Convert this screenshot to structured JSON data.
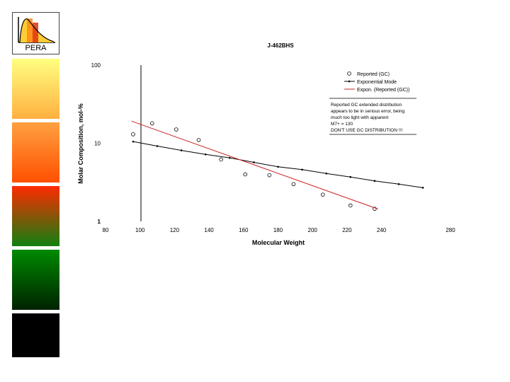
{
  "sidebar": {
    "logo_label": "PERA",
    "colors": [
      "#ffff80",
      "#ffa040",
      "#ff2a00",
      "#008a00",
      "#000000"
    ]
  },
  "chart_data": {
    "type": "scatter",
    "title": "J-462BHS",
    "xlabel": "Molecular Weight",
    "ylabel": "Molar Composition, mol-%",
    "xlim": [
      80,
      280
    ],
    "ylim": [
      1,
      100
    ],
    "y_scale": "log",
    "x_ticks": [
      "80",
      "100",
      "120",
      "140",
      "160",
      "180",
      "200",
      "220",
      "240",
      "280"
    ],
    "y_ticks": [
      "100",
      "10",
      "1"
    ],
    "legend": {
      "placement": "top-right",
      "entries": [
        "Reported (GC)",
        "Exponential Mode",
        "Expon. (Reported (GC))"
      ]
    },
    "annotation": [
      "Reported GC extended distribution",
      "appears to be in serious error, being",
      "much too light with apparent",
      "M7+ = 130",
      "DON'T USE GC DISTRIBUTION !!!"
    ],
    "series": [
      {
        "name": "Reported (GC)",
        "color": "#000000",
        "marker": "open-circle",
        "x": [
          96,
          107,
          121,
          134,
          147,
          161,
          175,
          189,
          206,
          222,
          236
        ],
        "y": [
          13,
          18,
          15,
          11,
          6.2,
          4,
          3.9,
          3,
          2.2,
          1.6,
          1.45
        ]
      },
      {
        "name": "Exponential Mode",
        "color": "#000000",
        "marker": "small-dot",
        "x": [
          96,
          110,
          124,
          138,
          152,
          166,
          180,
          194,
          208,
          222,
          236,
          250,
          264
        ],
        "y": [
          10.5,
          9.2,
          8.1,
          7.2,
          6.5,
          5.7,
          5,
          4.6,
          4.1,
          3.7,
          3.3,
          3,
          2.7
        ]
      },
      {
        "name": "Expon. (Reported (GC))",
        "color": "#cc2020",
        "marker": "none",
        "x": [
          95,
          238
        ],
        "y": [
          19.2,
          1.44
        ]
      }
    ]
  }
}
